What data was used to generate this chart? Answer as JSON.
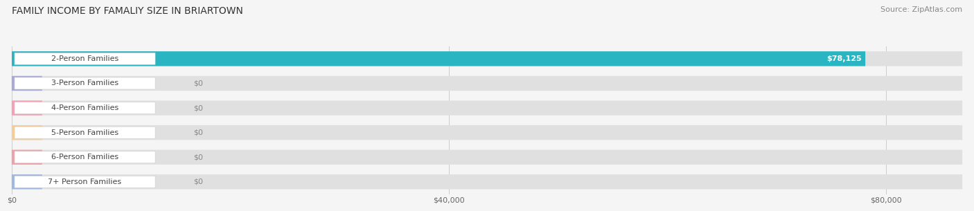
{
  "title": "FAMILY INCOME BY FAMALIY SIZE IN BRIARTOWN",
  "source": "Source: ZipAtlas.com",
  "categories": [
    "2-Person Families",
    "3-Person Families",
    "4-Person Families",
    "5-Person Families",
    "6-Person Families",
    "7+ Person Families"
  ],
  "values": [
    78125,
    0,
    0,
    0,
    0,
    0
  ],
  "bar_colors": [
    "#2ab5c3",
    "#a9a9d4",
    "#f4a0b5",
    "#f7cc96",
    "#f0a0a8",
    "#a0b8e0"
  ],
  "xlim_max": 87000,
  "xticks": [
    0,
    40000,
    80000
  ],
  "xtick_labels": [
    "$0",
    "$40,000",
    "$80,000"
  ],
  "background_color": "#f5f5f5",
  "title_fontsize": 10,
  "source_fontsize": 8,
  "label_fontsize": 8,
  "value_fontsize": 8,
  "bar_height": 0.6
}
